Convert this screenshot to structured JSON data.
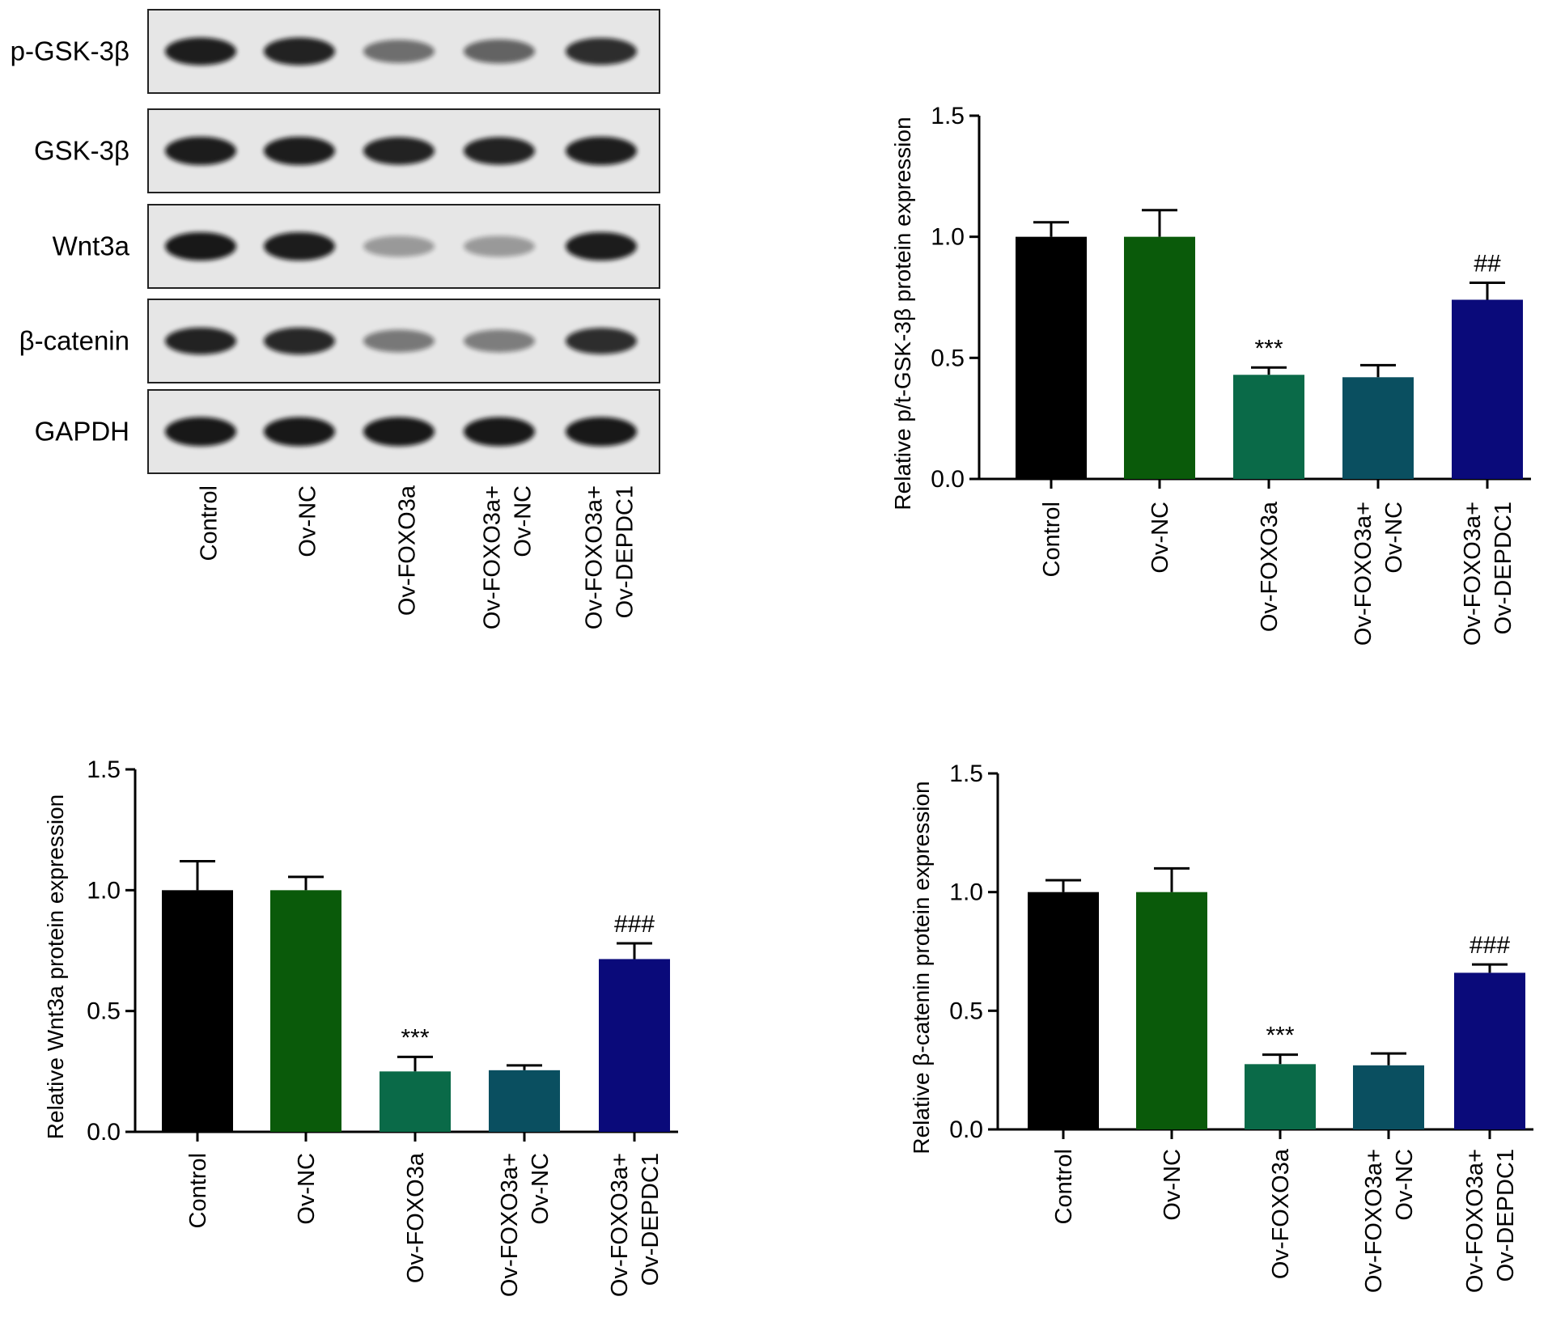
{
  "western_blot": {
    "rows": [
      {
        "label": "p-GSK-3β",
        "intensity": [
          0.92,
          0.9,
          0.55,
          0.6,
          0.85
        ],
        "thickness": [
          0.9,
          0.9,
          0.6,
          0.65,
          0.85
        ]
      },
      {
        "label": "GSK-3β",
        "intensity": [
          0.93,
          0.93,
          0.9,
          0.9,
          0.92
        ],
        "thickness": [
          0.95,
          0.95,
          0.9,
          0.9,
          0.95
        ]
      },
      {
        "label": "Wnt3a",
        "intensity": [
          0.95,
          0.93,
          0.35,
          0.35,
          0.93
        ],
        "thickness": [
          0.95,
          0.95,
          0.45,
          0.45,
          0.95
        ]
      },
      {
        "label": "β-catenin",
        "intensity": [
          0.9,
          0.88,
          0.5,
          0.48,
          0.85
        ],
        "thickness": [
          0.85,
          0.85,
          0.55,
          0.55,
          0.8
        ]
      },
      {
        "label": "GAPDH",
        "intensity": [
          0.95,
          0.95,
          0.95,
          0.95,
          0.95
        ],
        "thickness": [
          1.0,
          1.0,
          1.0,
          1.0,
          1.0
        ]
      }
    ],
    "lanes": [
      [
        "Control"
      ],
      [
        "Ov-NC"
      ],
      [
        "Ov-FOXO3a"
      ],
      [
        "Ov-FOXO3a+",
        "Ov-NC"
      ],
      [
        "Ov-FOXO3a+",
        "Ov-DEPDC1"
      ]
    ],
    "band_color": "#111111",
    "lane_bg": "#e6e6e6"
  },
  "chart_data": [
    {
      "type": "bar",
      "categories": [
        [
          "Control"
        ],
        [
          "Ov-NC"
        ],
        [
          "Ov-FOXO3a"
        ],
        [
          "Ov-FOXO3a+",
          "Ov-NC"
        ],
        [
          "Ov-FOXO3a+",
          "Ov-DEPDC1"
        ]
      ],
      "values": [
        1.0,
        1.0,
        0.43,
        0.42,
        0.74
      ],
      "errors": [
        0.06,
        0.11,
        0.03,
        0.05,
        0.07
      ],
      "annotations": [
        "",
        "",
        "***",
        "",
        "##"
      ],
      "ylabel": "Relative p/t-GSK-3β protein expression",
      "ylim": [
        0,
        1.5
      ],
      "yticks": [
        "0.0",
        "0.5",
        "1.0",
        "1.5"
      ],
      "colors": [
        "#000000",
        "#0a5a0a",
        "#0a6a48",
        "#0a4f60",
        "#0a0a7a"
      ]
    },
    {
      "type": "bar",
      "categories": [
        [
          "Control"
        ],
        [
          "Ov-NC"
        ],
        [
          "Ov-FOXO3a"
        ],
        [
          "Ov-FOXO3a+",
          "Ov-NC"
        ],
        [
          "Ov-FOXO3a+",
          "Ov-DEPDC1"
        ]
      ],
      "values": [
        1.0,
        1.0,
        0.25,
        0.255,
        0.715
      ],
      "errors": [
        0.12,
        0.055,
        0.06,
        0.02,
        0.065
      ],
      "annotations": [
        "",
        "",
        "***",
        "",
        "###"
      ],
      "ylabel": "Relative Wnt3a protein expression",
      "ylim": [
        0,
        1.5
      ],
      "yticks": [
        "0.0",
        "0.5",
        "1.0",
        "1.5"
      ],
      "colors": [
        "#000000",
        "#0a5a0a",
        "#0a6a48",
        "#0a4f60",
        "#0a0a7a"
      ]
    },
    {
      "type": "bar",
      "categories": [
        [
          "Control"
        ],
        [
          "Ov-NC"
        ],
        [
          "Ov-FOXO3a"
        ],
        [
          "Ov-FOXO3a+",
          "Ov-NC"
        ],
        [
          "Ov-FOXO3a+",
          "Ov-DEPDC1"
        ]
      ],
      "values": [
        1.0,
        1.0,
        0.275,
        0.27,
        0.66
      ],
      "errors": [
        0.05,
        0.1,
        0.04,
        0.05,
        0.035
      ],
      "annotations": [
        "",
        "",
        "***",
        "",
        "###"
      ],
      "ylabel": "Relative β-catenin protein expression",
      "ylim": [
        0,
        1.5
      ],
      "yticks": [
        "0.0",
        "0.5",
        "1.0",
        "1.5"
      ],
      "colors": [
        "#000000",
        "#0a5a0a",
        "#0a6a48",
        "#0a4f60",
        "#0a0a7a"
      ]
    }
  ]
}
